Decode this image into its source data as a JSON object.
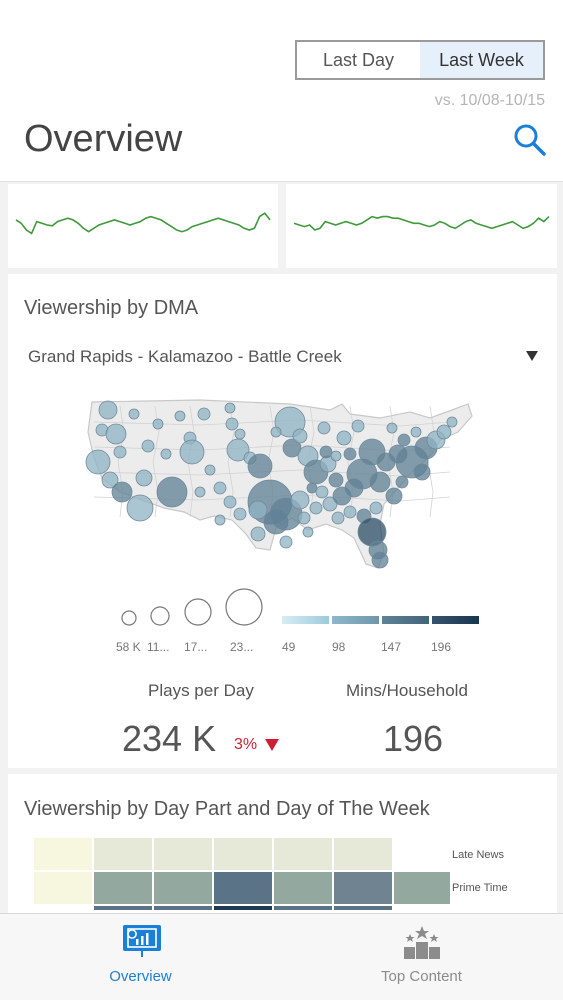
{
  "header": {
    "range_tabs": [
      {
        "label": "Last Day",
        "active": false
      },
      {
        "label": "Last Week",
        "active": true
      }
    ],
    "comparison": "vs. 10/08-10/15",
    "title": "Overview",
    "search_icon": "search-icon"
  },
  "sparklines": {
    "left": [
      0.62,
      0.58,
      0.5,
      0.46,
      0.6,
      0.58,
      0.56,
      0.55,
      0.6,
      0.62,
      0.64,
      0.62,
      0.58,
      0.52,
      0.48,
      0.52,
      0.56,
      0.58,
      0.6,
      0.62,
      0.6,
      0.58,
      0.56,
      0.58,
      0.6,
      0.64,
      0.66,
      0.64,
      0.62,
      0.58,
      0.54,
      0.5,
      0.48,
      0.5,
      0.54,
      0.56,
      0.58,
      0.6,
      0.62,
      0.64,
      0.62,
      0.6,
      0.58,
      0.56,
      0.52,
      0.5,
      0.52,
      0.66,
      0.7,
      0.62
    ],
    "right": [
      0.58,
      0.56,
      0.54,
      0.56,
      0.5,
      0.52,
      0.6,
      0.58,
      0.56,
      0.58,
      0.6,
      0.58,
      0.56,
      0.58,
      0.62,
      0.66,
      0.64,
      0.66,
      0.66,
      0.64,
      0.64,
      0.62,
      0.6,
      0.58,
      0.58,
      0.56,
      0.54,
      0.56,
      0.6,
      0.58,
      0.54,
      0.52,
      0.56,
      0.6,
      0.62,
      0.58,
      0.56,
      0.54,
      0.52,
      0.54,
      0.56,
      0.58,
      0.6,
      0.56,
      0.52,
      0.54,
      0.58,
      0.64,
      0.6,
      0.66
    ],
    "color": "#3e9a3a"
  },
  "dma": {
    "title": "Viewership by DMA",
    "selected": "Grand Rapids - Kalamazoo - Battle Creek",
    "size_legend": [
      "58 K",
      "11...",
      "17...",
      "23..."
    ],
    "color_legend": [
      "49",
      "98",
      "147",
      "196"
    ],
    "color_ramp": [
      "#b8dce8",
      "#7fa8bc",
      "#4e6f82",
      "#1e3a52"
    ]
  },
  "metrics": {
    "plays_label": "Plays per Day",
    "plays_value": "234 K",
    "plays_change": "3%",
    "plays_trend": "down",
    "mins_label": "Mins/Household",
    "mins_value": "196"
  },
  "daypart": {
    "title": "Viewership by Day Part and Day of The Week",
    "rows": [
      "Late News",
      "Prime Time"
    ],
    "colors": {
      "late_news": [
        "#f7f6df",
        "#e6e9d7",
        "#e6e9d7",
        "#e6e9d7",
        "#e6e9d7",
        "#e6e9d7",
        ""
      ],
      "prime_time": [
        "#f7f6df",
        "#93a89f",
        "#93a89f",
        "#5b7386",
        "#93a89f",
        "#6f8490",
        "#93a89f"
      ]
    }
  },
  "tabbar": {
    "tabs": [
      {
        "label": "Overview",
        "icon": "presentation-chart-icon",
        "active": true
      },
      {
        "label": "Top Content",
        "icon": "podium-stars-icon",
        "active": false
      }
    ],
    "active_color": "#1a7fd6",
    "inactive_color": "#8c8c8c"
  }
}
